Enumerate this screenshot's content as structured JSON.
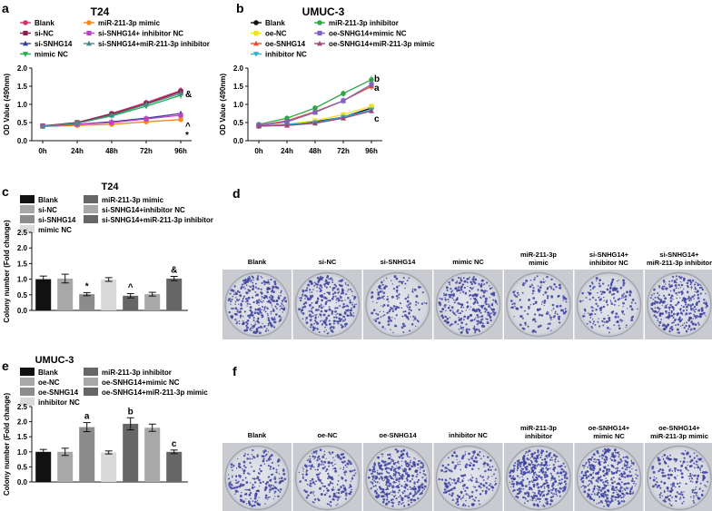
{
  "panel_letters": {
    "a": "a",
    "b": "b",
    "c": "c",
    "d": "d",
    "e": "e",
    "f": "f"
  },
  "colors": {
    "blank": "#d6336c",
    "siNC": "#8a1a4a",
    "siSNHG14": "#3a3aa8",
    "mimicNC": "#22b04a",
    "mimic": "#f28a1e",
    "siInhNC": "#c040c0",
    "siInh": "#4a8a8a",
    "bBlank": "#111111",
    "oeNC": "#f4e020",
    "oeSNHG14": "#e8502a",
    "inhNC": "#27b3d6",
    "inh": "#2fa84a",
    "oeMimicNC": "#8060c0",
    "oeMimic": "#9a4a7a",
    "barBlack": "#111111",
    "barGrey1": "#a8a8a8",
    "barGrey2": "#8c8c8c",
    "barLight": "#d9d9d9",
    "barDark": "#666666",
    "colonyDot": "#3b3fa0"
  },
  "dish_labels_d": [
    "Blank",
    "si-NC",
    "si-SNHG14",
    "mimic NC",
    "miR-211-3p\nmimic",
    "si-SNHG14+\ninhibitor NC",
    "si-SNHG14+\nmiR-211-3p inhibitor"
  ],
  "dish_labels_f": [
    "Blank",
    "oe-NC",
    "oe-SNHG14",
    "inhibitor NC",
    "miR-211-3p\ninhibitor",
    "oe-SNHG14+\nmimic NC",
    "oe-SNHG14+\nmiR-211-3p mimic"
  ],
  "chart_data": [
    {
      "id": "a",
      "type": "line",
      "title": "T24",
      "xlabel": "",
      "ylabel": "OD Value (490nm)",
      "categories": [
        "0h",
        "24h",
        "48h",
        "72h",
        "96h"
      ],
      "ylim": [
        0.0,
        2.0
      ],
      "yticks": [
        "0.0",
        "0.5",
        "1.0",
        "1.5",
        "2.0"
      ],
      "legend_cols": [
        [
          "Blank",
          "si-NC",
          "si-SNHG14",
          "mimic NC"
        ],
        [
          "miR-211-3p mimic",
          "si-SNHG14+ inhibitor NC",
          "si-SNHG14+miR-211-3p inhibitor"
        ]
      ],
      "annotations": [
        "&",
        "^",
        "*"
      ],
      "series": [
        {
          "name": "Blank",
          "color_key": "blank",
          "values": [
            0.4,
            0.5,
            0.75,
            1.05,
            1.38
          ]
        },
        {
          "name": "si-NC",
          "color_key": "siNC",
          "values": [
            0.41,
            0.5,
            0.73,
            1.02,
            1.35
          ]
        },
        {
          "name": "si-SNHG14",
          "color_key": "siSNHG14",
          "values": [
            0.4,
            0.45,
            0.52,
            0.62,
            0.75
          ]
        },
        {
          "name": "mimic NC",
          "color_key": "mimicNC",
          "values": [
            0.4,
            0.48,
            0.68,
            0.95,
            1.25
          ]
        },
        {
          "name": "miR-211-3p mimic",
          "color_key": "mimic",
          "values": [
            0.39,
            0.42,
            0.45,
            0.52,
            0.58
          ]
        },
        {
          "name": "si-SNHG14+ inhibitor NC",
          "color_key": "siInhNC",
          "values": [
            0.4,
            0.45,
            0.5,
            0.6,
            0.7
          ]
        },
        {
          "name": "si-SNHG14+miR-211-3p inhibitor",
          "color_key": "siInh",
          "values": [
            0.4,
            0.48,
            0.7,
            1.0,
            1.3
          ]
        }
      ]
    },
    {
      "id": "b",
      "type": "line",
      "title": "UMUC-3",
      "xlabel": "",
      "ylabel": "OD Value (490nm)",
      "categories": [
        "0h",
        "24h",
        "48h",
        "72h",
        "96h"
      ],
      "ylim": [
        0.0,
        2.0
      ],
      "yticks": [
        "0.0",
        "0.5",
        "1.0",
        "1.5",
        "2.0"
      ],
      "legend_cols": [
        [
          "Blank",
          "oe-NC",
          "oe-SNHG14",
          "inhibitor NC"
        ],
        [
          "miR-211-3p inhibitor",
          "oe-SNHG14+mimic NC",
          "oe-SNHG14+miR-211-3p mimic"
        ]
      ],
      "annotations": [
        "b",
        "a",
        "c"
      ],
      "series": [
        {
          "name": "Blank",
          "color_key": "bBlank",
          "values": [
            0.4,
            0.44,
            0.52,
            0.65,
            0.9
          ]
        },
        {
          "name": "oe-NC",
          "color_key": "oeNC",
          "values": [
            0.41,
            0.46,
            0.55,
            0.72,
            0.95
          ]
        },
        {
          "name": "oe-SNHG14",
          "color_key": "oeSNHG14",
          "values": [
            0.42,
            0.55,
            0.8,
            1.1,
            1.5
          ]
        },
        {
          "name": "inhibitor NC",
          "color_key": "inhNC",
          "values": [
            0.4,
            0.45,
            0.5,
            0.65,
            0.85
          ]
        },
        {
          "name": "miR-211-3p inhibitor",
          "color_key": "inh",
          "values": [
            0.45,
            0.62,
            0.9,
            1.3,
            1.68
          ]
        },
        {
          "name": "oe-SNHG14+mimic NC",
          "color_key": "oeMimicNC",
          "values": [
            0.42,
            0.52,
            0.78,
            1.1,
            1.55
          ]
        },
        {
          "name": "oe-SNHG14+miR-211-3p mimic",
          "color_key": "oeMimic",
          "values": [
            0.4,
            0.42,
            0.48,
            0.62,
            0.82
          ]
        }
      ]
    },
    {
      "id": "c",
      "type": "bar",
      "title": "T24",
      "xlabel": "",
      "ylabel": "Colony number (Fold change)",
      "categories": [
        "Blank",
        "si-NC",
        "si-SNHG14",
        "mimic NC",
        "miR-211-3p mimic",
        "si-SNHG14+inhibitor NC",
        "si-SNHG14+miR-211-3p inhibitor"
      ],
      "values": [
        1.0,
        1.02,
        0.52,
        0.99,
        0.47,
        0.52,
        1.02
      ],
      "errors": [
        0.1,
        0.14,
        0.05,
        0.06,
        0.07,
        0.06,
        0.07
      ],
      "bar_color_keys": [
        "barBlack",
        "barGrey1",
        "barGrey2",
        "barLight",
        "barDark",
        "barGrey1",
        "barDark"
      ],
      "labels": [
        "",
        "",
        "*",
        "",
        "^",
        "",
        "&"
      ],
      "ylim": [
        0.0,
        2.5
      ],
      "yticks": [
        "0.0",
        "0.5",
        "1.0",
        "1.5",
        "2.0",
        "2.5"
      ]
    },
    {
      "id": "e",
      "type": "bar",
      "title": "UMUC-3",
      "xlabel": "",
      "ylabel": "Colony number (Fold change)",
      "categories": [
        "Blank",
        "oe-NC",
        "oe-SNHG14",
        "inhibitor NC",
        "miR-211-3p inhibitor",
        "oe-SNHG14+mimic NC",
        "oe-SNHG14+miR-211-3p mimic"
      ],
      "values": [
        1.0,
        1.0,
        1.82,
        0.98,
        1.93,
        1.8,
        1.0
      ],
      "errors": [
        0.08,
        0.12,
        0.15,
        0.05,
        0.2,
        0.12,
        0.06
      ],
      "bar_color_keys": [
        "barBlack",
        "barGrey1",
        "barGrey2",
        "barLight",
        "barDark",
        "barGrey1",
        "barDark"
      ],
      "labels": [
        "",
        "",
        "a",
        "",
        "b",
        "",
        "c"
      ],
      "ylim": [
        0.0,
        2.5
      ],
      "yticks": [
        "0.0",
        "0.5",
        "1.0",
        "1.5",
        "2.0",
        "2.5"
      ]
    }
  ]
}
